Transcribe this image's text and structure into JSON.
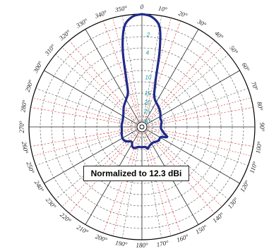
{
  "chart_data": {
    "type": "polar-line",
    "annotation": "Normalized to 12.3 dBi",
    "angle_labels": [
      {
        "deg": 0,
        "text": "0"
      },
      {
        "deg": 10,
        "text": "10°"
      },
      {
        "deg": 20,
        "text": "20°"
      },
      {
        "deg": 30,
        "text": "30°"
      },
      {
        "deg": 40,
        "text": "40°"
      },
      {
        "deg": 50,
        "text": "50°"
      },
      {
        "deg": 60,
        "text": "60°"
      },
      {
        "deg": 70,
        "text": "70°"
      },
      {
        "deg": 80,
        "text": "80°"
      },
      {
        "deg": 90,
        "text": "90°"
      },
      {
        "deg": 100,
        "text": "100°"
      },
      {
        "deg": 110,
        "text": "110°"
      },
      {
        "deg": 120,
        "text": "120°"
      },
      {
        "deg": 130,
        "text": "130°"
      },
      {
        "deg": 140,
        "text": "140°"
      },
      {
        "deg": 150,
        "text": "150°"
      },
      {
        "deg": 160,
        "text": "160°"
      },
      {
        "deg": 170,
        "text": "170°"
      },
      {
        "deg": 180,
        "text": "180°"
      },
      {
        "deg": 190,
        "text": "190°"
      },
      {
        "deg": 200,
        "text": "200°"
      },
      {
        "deg": 210,
        "text": "210°"
      },
      {
        "deg": 220,
        "text": "220°"
      },
      {
        "deg": 230,
        "text": "230°"
      },
      {
        "deg": 240,
        "text": "240°"
      },
      {
        "deg": 250,
        "text": "250°"
      },
      {
        "deg": 260,
        "text": "260°"
      },
      {
        "deg": 270,
        "text": "270°"
      },
      {
        "deg": 280,
        "text": "280°"
      },
      {
        "deg": 290,
        "text": "290°"
      },
      {
        "deg": 300,
        "text": "300°"
      },
      {
        "deg": 310,
        "text": "310°"
      },
      {
        "deg": 320,
        "text": "320°"
      },
      {
        "deg": 330,
        "text": "330°"
      },
      {
        "deg": 340,
        "text": "340°"
      },
      {
        "deg": 350,
        "text": "350°"
      }
    ],
    "radial_labels": [
      "2",
      "4",
      "10",
      "15",
      "20",
      "25",
      "30"
    ],
    "ring_count": 10,
    "series": [
      {
        "color": "#1f2a8a",
        "points": [
          [
            0,
            1.0
          ],
          [
            5,
            0.98
          ],
          [
            10,
            0.9
          ],
          [
            13,
            0.7
          ],
          [
            16,
            0.45
          ],
          [
            20,
            0.32
          ],
          [
            25,
            0.27
          ],
          [
            35,
            0.24
          ],
          [
            45,
            0.22
          ],
          [
            55,
            0.2
          ],
          [
            65,
            0.18
          ],
          [
            75,
            0.18
          ],
          [
            85,
            0.17
          ],
          [
            95,
            0.17
          ],
          [
            105,
            0.2
          ],
          [
            112,
            0.24
          ],
          [
            118,
            0.19
          ],
          [
            130,
            0.19
          ],
          [
            145,
            0.17
          ],
          [
            158,
            0.18
          ],
          [
            165,
            0.2
          ],
          [
            170,
            0.18
          ],
          [
            180,
            0.18
          ],
          [
            190,
            0.18
          ],
          [
            200,
            0.2
          ],
          [
            207,
            0.19
          ],
          [
            215,
            0.16
          ],
          [
            228,
            0.19
          ],
          [
            238,
            0.2
          ],
          [
            250,
            0.19
          ],
          [
            260,
            0.18
          ],
          [
            275,
            0.18
          ],
          [
            290,
            0.18
          ],
          [
            305,
            0.2
          ],
          [
            318,
            0.24
          ],
          [
            330,
            0.28
          ],
          [
            338,
            0.33
          ],
          [
            342,
            0.45
          ],
          [
            346,
            0.7
          ],
          [
            350,
            0.9
          ],
          [
            355,
            0.98
          ],
          [
            360,
            1.0
          ]
        ]
      }
    ]
  }
}
